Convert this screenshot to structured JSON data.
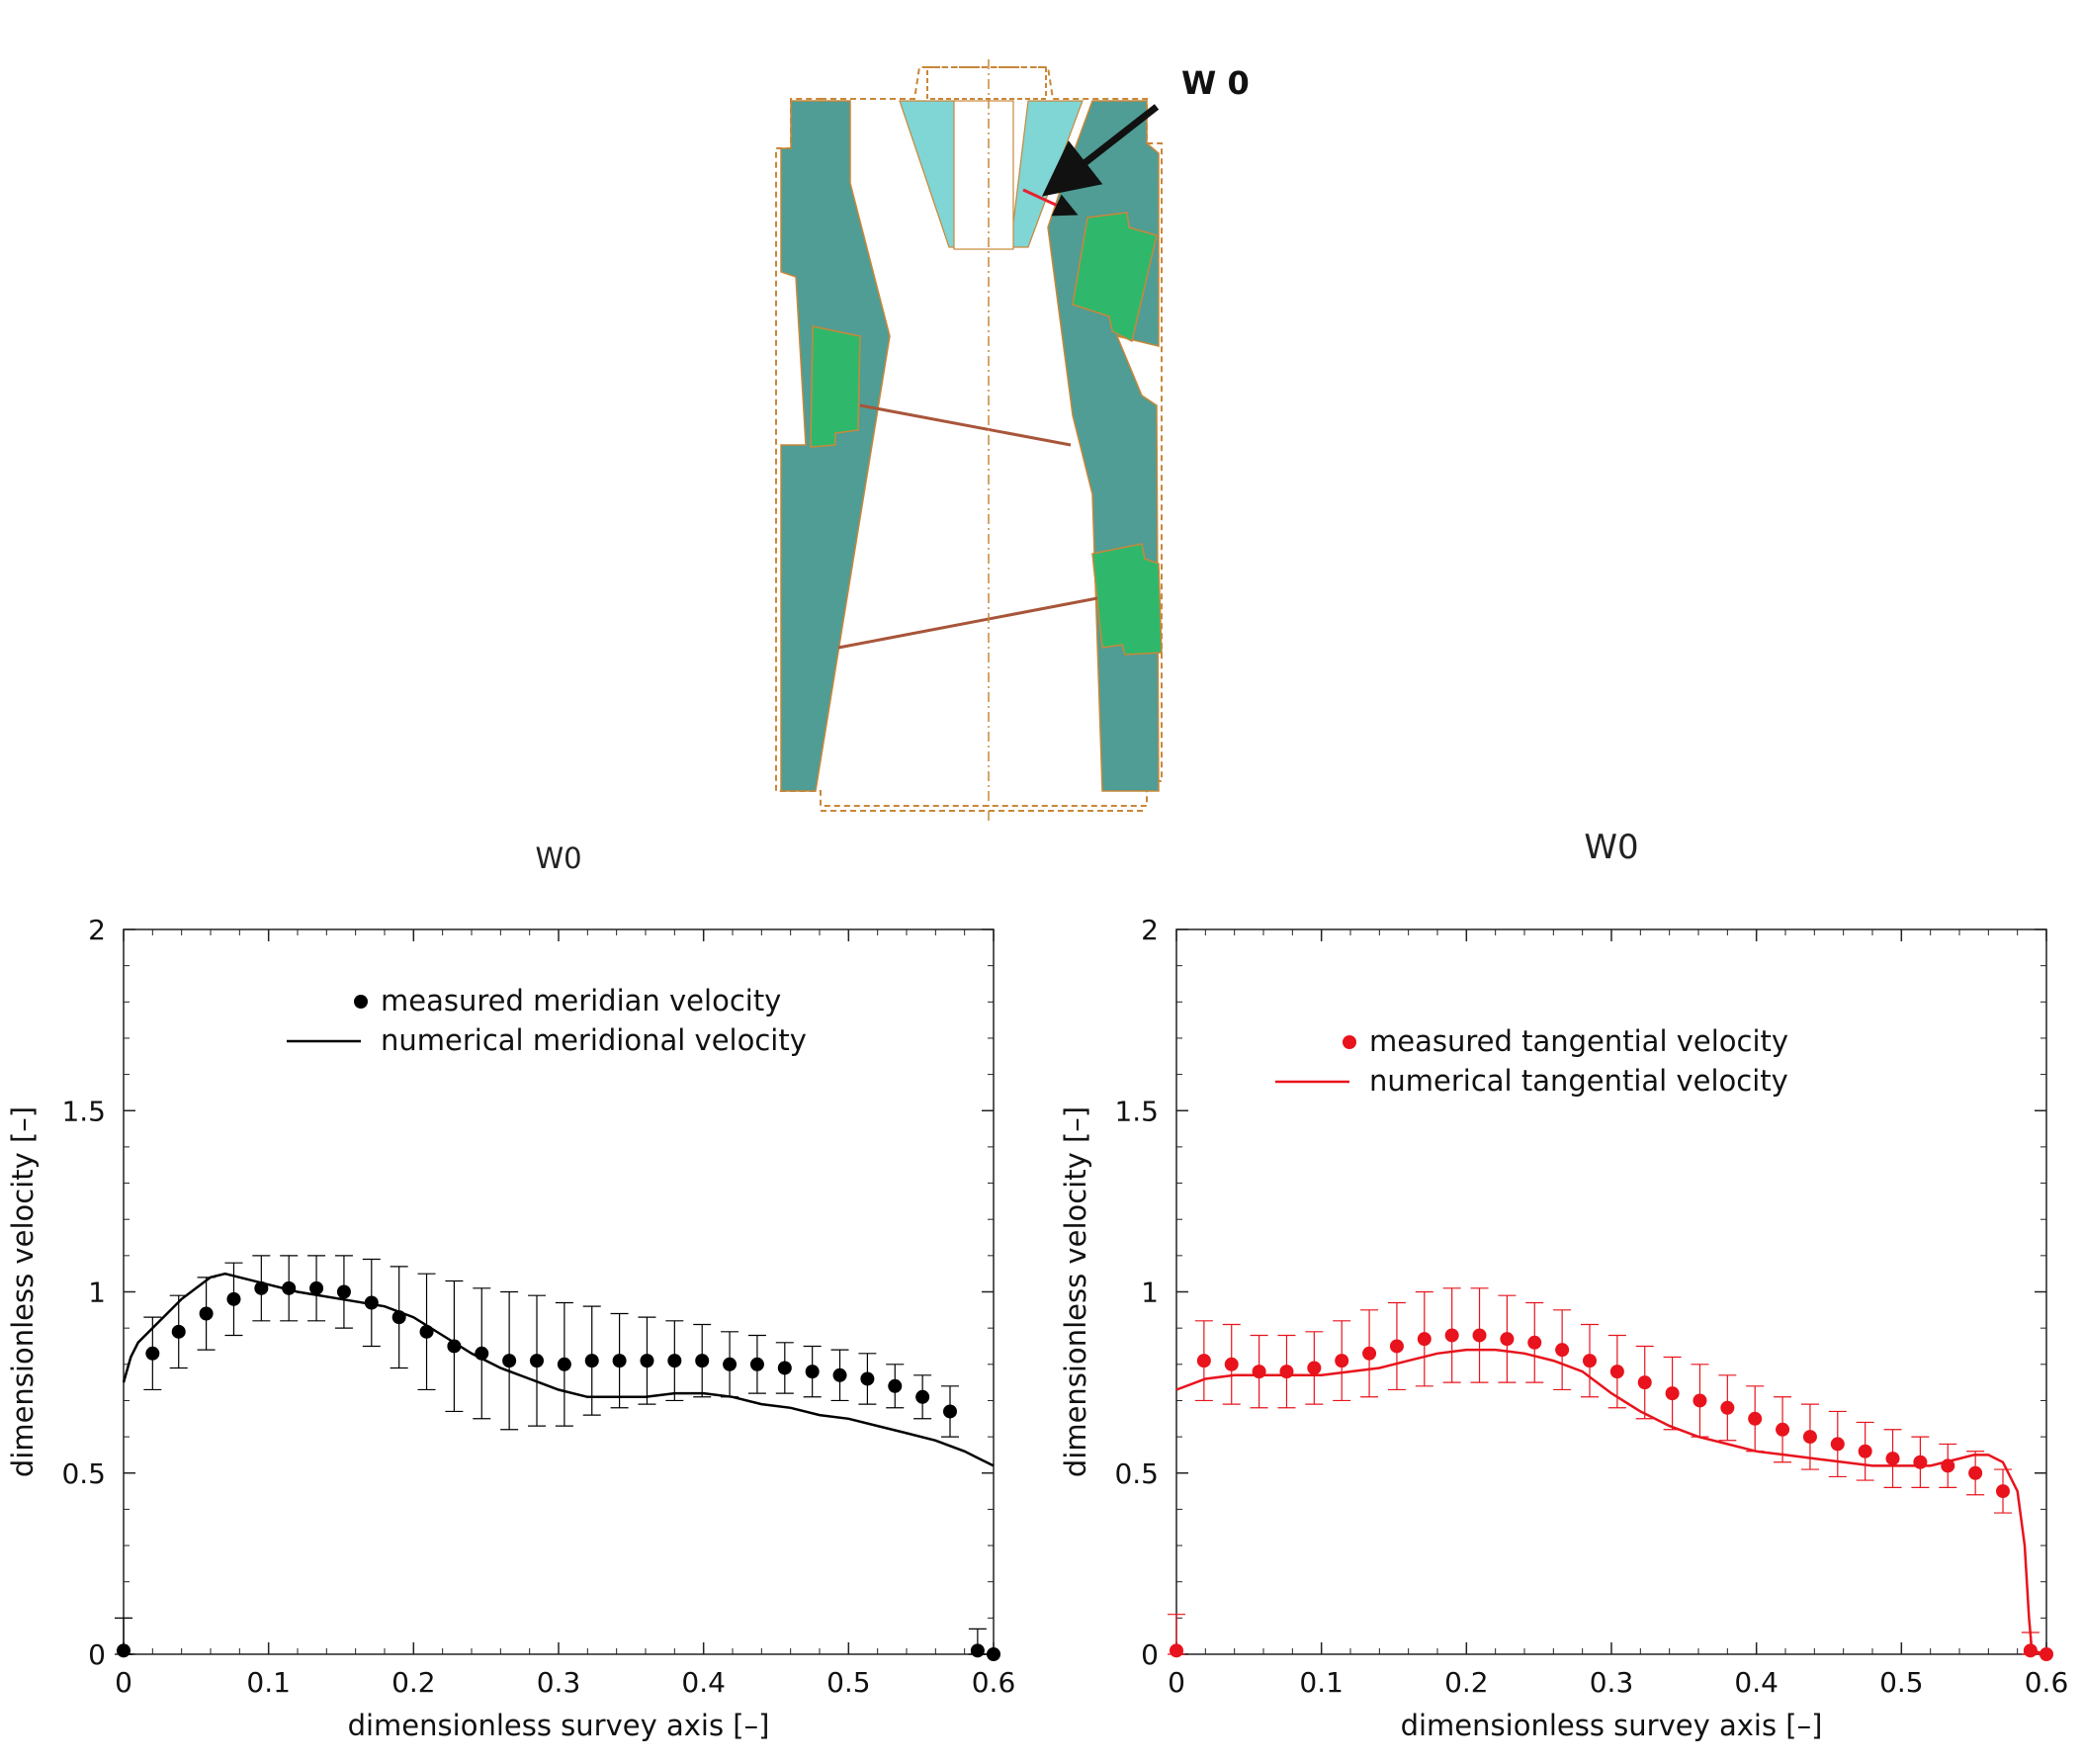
{
  "diagram": {
    "callout": "W 0",
    "colors": {
      "casing": "#4f9d94",
      "runner": "#2fb86c",
      "cone": "#7fd6d4",
      "arrow": "#111111",
      "probe": "#e8202f"
    }
  },
  "chart_data": [
    {
      "type": "scatter",
      "title": "W0",
      "xlabel": "dimensionless survey axis [–]",
      "ylabel": "dimensionless velocity [–]",
      "xlim": [
        0,
        0.6
      ],
      "ylim": [
        0,
        2
      ],
      "xticks": [
        0,
        0.1,
        0.2,
        0.3,
        0.4,
        0.5,
        0.6
      ],
      "xtick_labels": [
        "0",
        "0.1",
        "0.2",
        "0.3",
        "0.4",
        "0.5",
        "0.6"
      ],
      "yticks": [
        0,
        0.5,
        1,
        1.5,
        2
      ],
      "ytick_labels": [
        "0",
        "0.5",
        "1",
        "1.5",
        "2"
      ],
      "color": "#000000",
      "legend_position": "top-center",
      "series": [
        {
          "name": "measured meridian velocity",
          "kind": "points",
          "x": [
            0.0,
            0.02,
            0.038,
            0.057,
            0.076,
            0.095,
            0.114,
            0.133,
            0.152,
            0.171,
            0.19,
            0.209,
            0.228,
            0.247,
            0.266,
            0.285,
            0.304,
            0.323,
            0.342,
            0.361,
            0.38,
            0.399,
            0.418,
            0.437,
            0.456,
            0.475,
            0.494,
            0.513,
            0.532,
            0.551,
            0.57,
            0.589,
            0.6
          ],
          "y": [
            0.01,
            0.83,
            0.89,
            0.94,
            0.98,
            1.01,
            1.01,
            1.01,
            1.0,
            0.97,
            0.93,
            0.89,
            0.85,
            0.83,
            0.81,
            0.81,
            0.8,
            0.81,
            0.81,
            0.81,
            0.81,
            0.81,
            0.8,
            0.8,
            0.79,
            0.78,
            0.77,
            0.76,
            0.74,
            0.71,
            0.67,
            0.01,
            0.0
          ],
          "err": [
            0.09,
            0.1,
            0.1,
            0.1,
            0.1,
            0.09,
            0.09,
            0.09,
            0.1,
            0.12,
            0.14,
            0.16,
            0.18,
            0.18,
            0.19,
            0.18,
            0.17,
            0.15,
            0.13,
            0.12,
            0.11,
            0.1,
            0.09,
            0.08,
            0.07,
            0.07,
            0.07,
            0.07,
            0.06,
            0.06,
            0.07,
            0.06,
            0.0
          ]
        },
        {
          "name": "numerical meridional velocity",
          "kind": "line",
          "x": [
            0.0,
            0.005,
            0.01,
            0.02,
            0.03,
            0.04,
            0.05,
            0.06,
            0.07,
            0.08,
            0.1,
            0.12,
            0.15,
            0.18,
            0.2,
            0.22,
            0.24,
            0.26,
            0.28,
            0.3,
            0.32,
            0.34,
            0.36,
            0.38,
            0.4,
            0.42,
            0.44,
            0.46,
            0.48,
            0.5,
            0.52,
            0.54,
            0.56,
            0.58,
            0.59,
            0.6
          ],
          "y": [
            0.75,
            0.82,
            0.86,
            0.9,
            0.94,
            0.98,
            1.01,
            1.04,
            1.05,
            1.04,
            1.02,
            1.0,
            0.98,
            0.96,
            0.93,
            0.88,
            0.83,
            0.79,
            0.76,
            0.73,
            0.71,
            0.71,
            0.71,
            0.72,
            0.72,
            0.71,
            0.69,
            0.68,
            0.66,
            0.65,
            0.63,
            0.61,
            0.59,
            0.56,
            0.54,
            0.52
          ]
        }
      ]
    },
    {
      "type": "scatter",
      "title": "W0",
      "xlabel": "dimensionless survey axis [–]",
      "ylabel": "dimensionless velocity [–]",
      "xlim": [
        0,
        0.6
      ],
      "ylim": [
        0,
        2
      ],
      "xticks": [
        0,
        0.1,
        0.2,
        0.3,
        0.4,
        0.5,
        0.6
      ],
      "xtick_labels": [
        "0",
        "0.1",
        "0.2",
        "0.3",
        "0.4",
        "0.5",
        "0.6"
      ],
      "yticks": [
        0,
        0.5,
        1,
        1.5,
        2
      ],
      "ytick_labels": [
        "0",
        "0.5",
        "1",
        "1.5",
        "2"
      ],
      "color": "#e8131c",
      "legend_position": "top-center",
      "series": [
        {
          "name": "measured tangential velocity",
          "kind": "points",
          "x": [
            0.0,
            0.019,
            0.038,
            0.057,
            0.076,
            0.095,
            0.114,
            0.133,
            0.152,
            0.171,
            0.19,
            0.209,
            0.228,
            0.247,
            0.266,
            0.285,
            0.304,
            0.323,
            0.342,
            0.361,
            0.38,
            0.399,
            0.418,
            0.437,
            0.456,
            0.475,
            0.494,
            0.513,
            0.532,
            0.551,
            0.57,
            0.589,
            0.6
          ],
          "y": [
            0.01,
            0.81,
            0.8,
            0.78,
            0.78,
            0.79,
            0.81,
            0.83,
            0.85,
            0.87,
            0.88,
            0.88,
            0.87,
            0.86,
            0.84,
            0.81,
            0.78,
            0.75,
            0.72,
            0.7,
            0.68,
            0.65,
            0.62,
            0.6,
            0.58,
            0.56,
            0.54,
            0.53,
            0.52,
            0.5,
            0.45,
            0.01,
            0.0
          ],
          "err": [
            0.1,
            0.11,
            0.11,
            0.1,
            0.1,
            0.1,
            0.11,
            0.12,
            0.12,
            0.13,
            0.13,
            0.13,
            0.12,
            0.11,
            0.11,
            0.1,
            0.1,
            0.1,
            0.1,
            0.1,
            0.09,
            0.09,
            0.09,
            0.09,
            0.09,
            0.08,
            0.08,
            0.07,
            0.06,
            0.06,
            0.06,
            0.05,
            0.0
          ]
        },
        {
          "name": "numerical tangential velocity",
          "kind": "line",
          "x": [
            0.0,
            0.02,
            0.04,
            0.06,
            0.08,
            0.1,
            0.12,
            0.14,
            0.16,
            0.18,
            0.2,
            0.22,
            0.24,
            0.26,
            0.28,
            0.3,
            0.32,
            0.34,
            0.36,
            0.38,
            0.4,
            0.42,
            0.44,
            0.46,
            0.48,
            0.5,
            0.52,
            0.54,
            0.55,
            0.56,
            0.57,
            0.58,
            0.585,
            0.588,
            0.59,
            0.6
          ],
          "y": [
            0.73,
            0.76,
            0.77,
            0.77,
            0.77,
            0.77,
            0.78,
            0.79,
            0.81,
            0.83,
            0.84,
            0.84,
            0.83,
            0.81,
            0.78,
            0.72,
            0.67,
            0.63,
            0.6,
            0.58,
            0.56,
            0.55,
            0.54,
            0.53,
            0.52,
            0.52,
            0.52,
            0.54,
            0.55,
            0.55,
            0.53,
            0.45,
            0.3,
            0.1,
            0.01,
            0.0
          ]
        }
      ]
    }
  ]
}
